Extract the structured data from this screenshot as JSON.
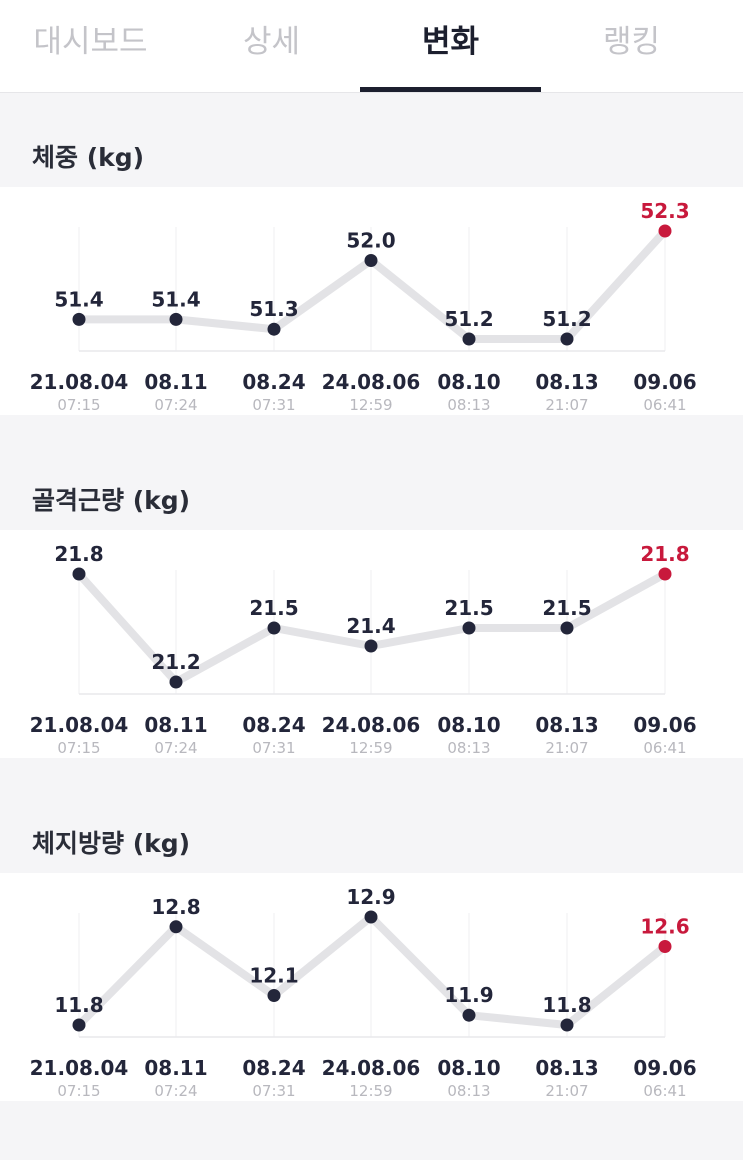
{
  "tabs": [
    {
      "label": "대시보드",
      "active": false
    },
    {
      "label": "상세",
      "active": false
    },
    {
      "label": "변화",
      "active": true
    },
    {
      "label": "랭킹",
      "active": false
    }
  ],
  "colors": {
    "accent": "#c8193c",
    "point": "#23263a",
    "line": "#e3e3e6"
  },
  "x_labels": [
    {
      "date": "21.08.04",
      "time": "07:15"
    },
    {
      "date": "08.11",
      "time": "07:24"
    },
    {
      "date": "08.24",
      "time": "07:31"
    },
    {
      "date": "24.08.06",
      "time": "12:59"
    },
    {
      "date": "08.10",
      "time": "08:13"
    },
    {
      "date": "08.13",
      "time": "21:07"
    },
    {
      "date": "09.06",
      "time": "06:41"
    }
  ],
  "chart_data": [
    {
      "type": "line",
      "title": "체중 (kg)",
      "values": [
        51.4,
        51.4,
        51.3,
        52.0,
        51.2,
        51.2,
        52.3
      ],
      "labels": [
        "51.4",
        "51.4",
        "51.3",
        "52.0",
        "51.2",
        "51.2",
        "52.3"
      ]
    },
    {
      "type": "line",
      "title": "골격근량 (kg)",
      "values": [
        21.8,
        21.2,
        21.5,
        21.4,
        21.5,
        21.5,
        21.8
      ],
      "labels": [
        "21.8",
        "21.2",
        "21.5",
        "21.4",
        "21.5",
        "21.5",
        "21.8"
      ]
    },
    {
      "type": "line",
      "title": "체지방량 (kg)",
      "values": [
        11.8,
        12.8,
        12.1,
        12.9,
        11.9,
        11.8,
        12.6
      ],
      "labels": [
        "11.8",
        "12.8",
        "12.1",
        "12.9",
        "11.9",
        "11.8",
        "12.6"
      ]
    }
  ]
}
